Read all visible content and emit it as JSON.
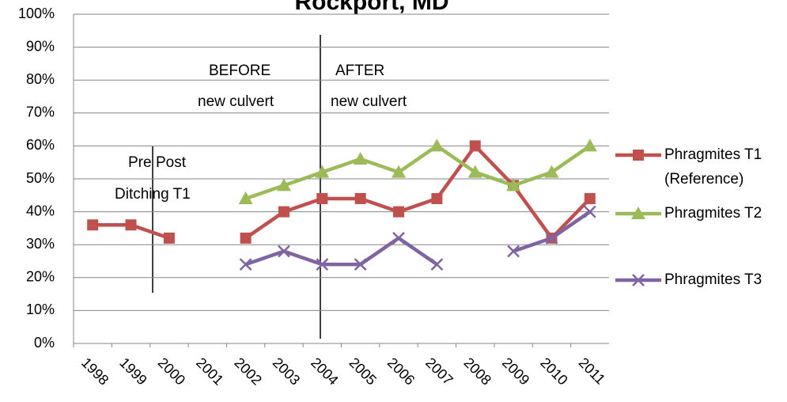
{
  "chart_data": {
    "type": "line",
    "title": "Rockport, MD",
    "categories": [
      "1998",
      "1999",
      "2000",
      "2001",
      "2002",
      "2003",
      "2004",
      "2005",
      "2006",
      "2007",
      "2008",
      "2009",
      "2010",
      "2011"
    ],
    "series": [
      {
        "name": "Phragmites T1 (Reference)",
        "color": "#c0504d",
        "marker": "square",
        "values": [
          36,
          36,
          32,
          null,
          32,
          40,
          44,
          44,
          40,
          44,
          60,
          48,
          32,
          44
        ]
      },
      {
        "name": "Phragmites T2",
        "color": "#9bbb59",
        "marker": "triangle",
        "values": [
          null,
          null,
          null,
          null,
          44,
          48,
          52,
          56,
          52,
          60,
          52,
          48,
          52,
          60
        ]
      },
      {
        "name": "Phragmites T3",
        "color": "#8064a2",
        "marker": "x",
        "values": [
          null,
          null,
          null,
          null,
          24,
          28,
          24,
          24,
          32,
          24,
          null,
          28,
          32,
          40
        ]
      }
    ],
    "ylim": [
      0,
      100
    ],
    "yticks": [
      {
        "value": 0,
        "label": "0%"
      },
      {
        "value": 10,
        "label": "10%"
      },
      {
        "value": 20,
        "label": "20%"
      },
      {
        "value": 30,
        "label": "30%"
      },
      {
        "value": 40,
        "label": "40%"
      },
      {
        "value": 50,
        "label": "50%"
      },
      {
        "value": 60,
        "label": "60%"
      },
      {
        "value": 70,
        "label": "70%"
      },
      {
        "value": 80,
        "label": "80%"
      },
      {
        "value": 90,
        "label": "90%"
      },
      {
        "value": 100,
        "label": "100%"
      }
    ],
    "grid": true,
    "legend": "right",
    "annotations": [
      "BEFORE",
      "new culvert",
      "AFTER",
      "new culvert",
      "Pre",
      "Post",
      "Ditching T1"
    ]
  }
}
